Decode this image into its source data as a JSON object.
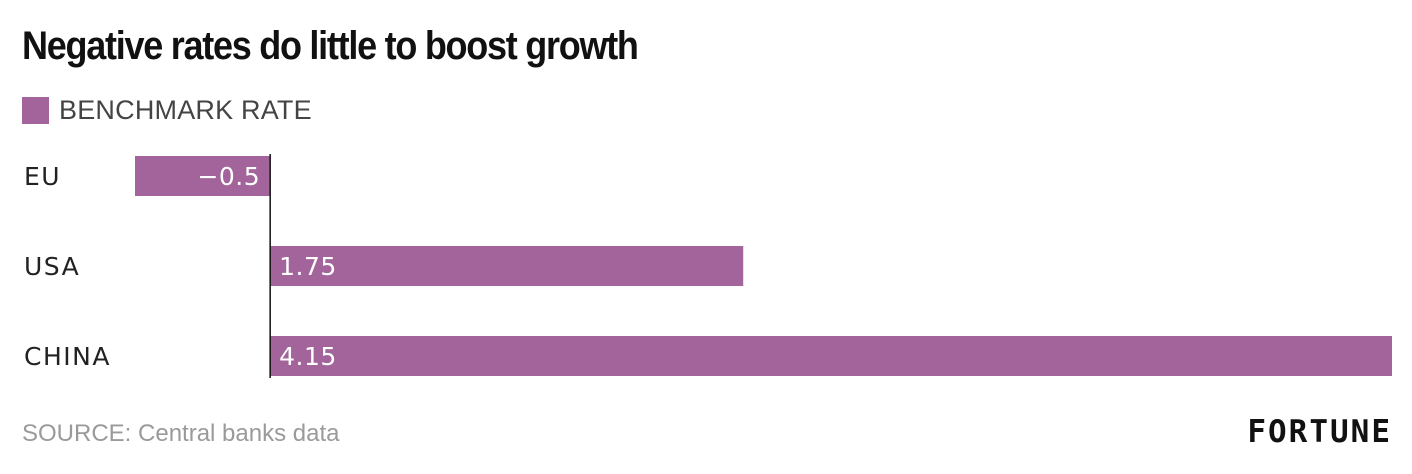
{
  "colors": {
    "bar": "#a2649b",
    "axis": "#111111"
  },
  "chart_data": {
    "type": "bar",
    "orientation": "horizontal",
    "title": "Negative rates do little to boost growth",
    "legend": [
      "BENCHMARK RATE"
    ],
    "legend_placement": "top-left",
    "categories": [
      "EU",
      "USA",
      "CHINA"
    ],
    "series": [
      {
        "name": "BENCHMARK RATE",
        "values": [
          -0.5,
          1.75,
          4.15
        ]
      }
    ],
    "value_labels": [
      "−0.5",
      "1.75",
      "4.15"
    ],
    "xlim": [
      -0.5,
      4.15
    ],
    "grid": false,
    "source": "SOURCE: Central banks data"
  },
  "footer": {
    "brand": "FORTUNE"
  }
}
